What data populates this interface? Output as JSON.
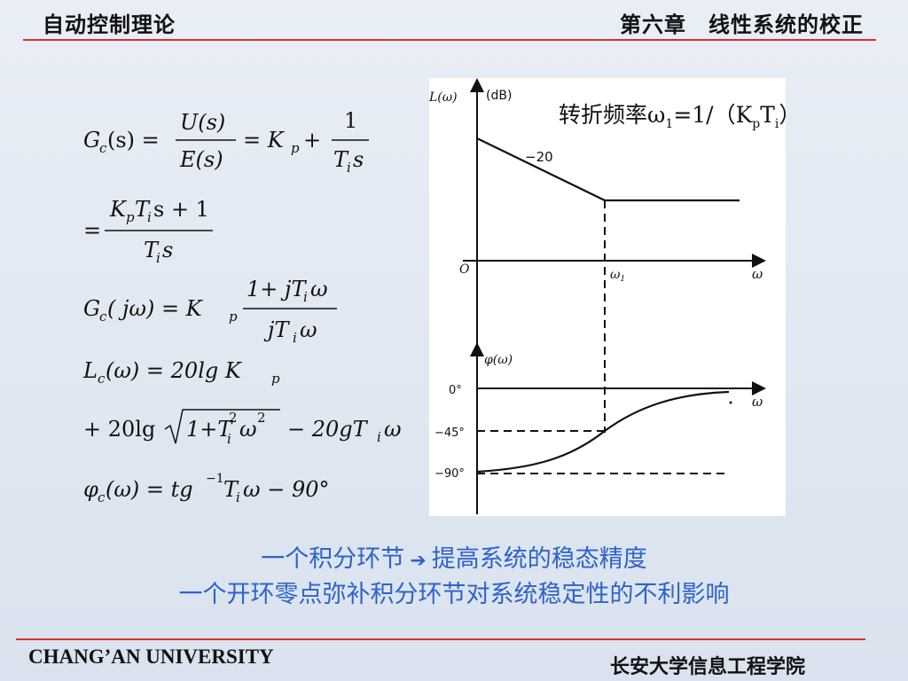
{
  "header": {
    "course": "自动控制理论",
    "chapter": "第六章　线性系统的校正"
  },
  "formulas": {
    "f1_lhs": "G",
    "f1_sub": "c",
    "f1_arg": "(s) =",
    "f1_num": "U(s)",
    "f1_den": "E(s)",
    "f1_mid": "= K",
    "f1_p": "p",
    "f1_plus": "+",
    "f1_one": "1",
    "f1_den2": "T",
    "f1_i": "i",
    "f1_s": "s",
    "f2_eq": "=",
    "f2_num": "K",
    "f2_num_p": "p",
    "f2_num_T": "T",
    "f2_num_i": "i",
    "f2_num_tail": "s + 1",
    "f2_den": "T",
    "f2_den_i": "i",
    "f2_den_s": "s",
    "f3_lhs": "G",
    "f3_sub": "c",
    "f3_arg": "( jω) = K",
    "f3_p": "p",
    "f3_num": "1+ jT",
    "f3_num_i": "i",
    "f3_num_w": "ω",
    "f3_den": "jT",
    "f3_den_i": "i",
    "f3_den_w": "ω",
    "f4_lhs": "L",
    "f4_sub": "c",
    "f4_rhs": "(ω) = 20lg K",
    "f4_p": "p",
    "f5_a": "+ 20lg",
    "f5_rad": "1+T",
    "f5_rad_i": "i",
    "f5_rad_2": "2",
    "f5_rad_w": "ω",
    "f5_rad_w2": "2",
    "f5_b": "− 20gT",
    "f5_b_i": "i",
    "f5_b_w": "ω",
    "f6_lhs": "φ",
    "f6_sub": "c",
    "f6_rhs": "(ω) = tg",
    "f6_sup": "−1",
    "f6_T": "T",
    "f6_i": "i",
    "f6_tail": "ω − 90°"
  },
  "figure": {
    "annotation_main": "转折频率ω",
    "annotation_sub1": "1",
    "annotation_mid": "=1/（K",
    "annotation_subp": "p",
    "annotation_T": "T",
    "annotation_subi": "i",
    "annotation_end": "）",
    "mag_ylabel": "L(ω)",
    "mag_unit": "(dB)",
    "slope_label": "−20",
    "origin_label": "O",
    "omega1": "ω",
    "omega1_sub": "1",
    "omega_axis": "ω",
    "phase_ylabel": "φ(ω)",
    "phase_0": "0°",
    "phase_45": "−45°",
    "phase_90": "−90°",
    "omega_axis2": "ω"
  },
  "captions": {
    "line1_a": "一个积分环节",
    "line1_arrow": "➔",
    "line1_b": "提高系统的稳态精度",
    "line2": "一个开环零点弥补积分环节对系统稳定性的不利影响"
  },
  "footer": {
    "university": "CHANG’AN UNIVERSITY",
    "school": "长安大学信息工程学院"
  },
  "colors": {
    "accent_rule": "#d9302a",
    "caption_blue": "#2e63c8",
    "background": "#e3eaf3"
  }
}
